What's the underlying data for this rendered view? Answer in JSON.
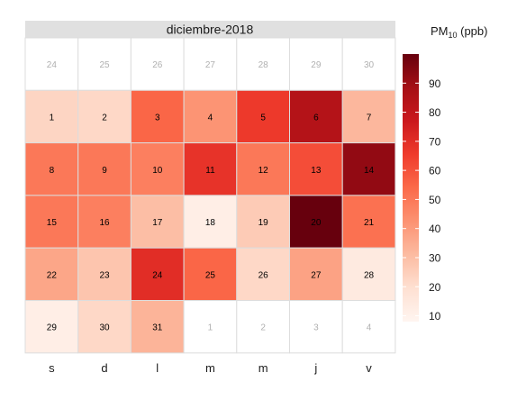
{
  "chart_data": {
    "type": "heatmap",
    "title": "diciembre-2018",
    "weekday_labels": [
      "s",
      "d",
      "l",
      "m",
      "m",
      "j",
      "v"
    ],
    "legend": {
      "title_main": "PM",
      "title_sub": "10",
      "title_unit": " (ppb)",
      "ticks": [
        10,
        20,
        30,
        40,
        50,
        60,
        70,
        80,
        90
      ],
      "range": [
        8,
        100
      ],
      "placement": "right"
    },
    "colors": {
      "scale": [
        "#fff5f0",
        "#fee0d2",
        "#fcbba1",
        "#fc9272",
        "#fb6a4a",
        "#ef3b2c",
        "#cb181d",
        "#a50f15",
        "#67000d"
      ],
      "grid": "#dddddd",
      "title_bg": "#e0e0e0",
      "outside_text": "#b0b0b0",
      "inside_text": "#000000"
    },
    "rows": [
      [
        {
          "day": "24",
          "outside": true
        },
        {
          "day": "25",
          "outside": true
        },
        {
          "day": "26",
          "outside": true
        },
        {
          "day": "27",
          "outside": true
        },
        {
          "day": "28",
          "outside": true
        },
        {
          "day": "29",
          "outside": true
        },
        {
          "day": "30",
          "outside": true
        }
      ],
      [
        {
          "day": "1",
          "value": 23
        },
        {
          "day": "2",
          "value": 22
        },
        {
          "day": "3",
          "value": 55
        },
        {
          "day": "4",
          "value": 42
        },
        {
          "day": "5",
          "value": 66
        },
        {
          "day": "6",
          "value": 84
        },
        {
          "day": "7",
          "value": 32
        }
      ],
      [
        {
          "day": "8",
          "value": 50
        },
        {
          "day": "9",
          "value": 50
        },
        {
          "day": "10",
          "value": 48
        },
        {
          "day": "11",
          "value": 68
        },
        {
          "day": "12",
          "value": 50
        },
        {
          "day": "13",
          "value": 61
        },
        {
          "day": "14",
          "value": 92
        }
      ],
      [
        {
          "day": "15",
          "value": 50
        },
        {
          "day": "16",
          "value": 48
        },
        {
          "day": "17",
          "value": 30
        },
        {
          "day": "18",
          "value": 12
        },
        {
          "day": "19",
          "value": 26
        },
        {
          "day": "20",
          "value": 100
        },
        {
          "day": "21",
          "value": 52
        }
      ],
      [
        {
          "day": "22",
          "value": 37
        },
        {
          "day": "23",
          "value": 28
        },
        {
          "day": "24",
          "value": 70
        },
        {
          "day": "25",
          "value": 55
        },
        {
          "day": "26",
          "value": 22
        },
        {
          "day": "27",
          "value": 38
        },
        {
          "day": "28",
          "value": 14
        }
      ],
      [
        {
          "day": "29",
          "value": 12
        },
        {
          "day": "30",
          "value": 22
        },
        {
          "day": "31",
          "value": 33
        },
        {
          "day": "1",
          "outside": true
        },
        {
          "day": "2",
          "outside": true
        },
        {
          "day": "3",
          "outside": true
        },
        {
          "day": "4",
          "outside": true
        }
      ]
    ]
  }
}
